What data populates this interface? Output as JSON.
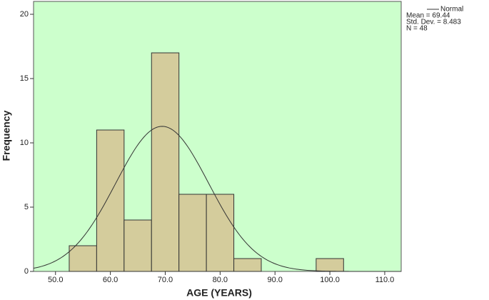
{
  "chart_data": {
    "type": "histogram",
    "xlabel": "AGE (YEARS)",
    "ylabel": "Frequency",
    "bins": [
      52.5,
      57.5,
      62.5,
      67.5,
      72.5,
      77.5,
      82.5,
      87.5,
      92.5,
      97.5,
      102.5
    ],
    "values": [
      2,
      11,
      4,
      17,
      6,
      6,
      1,
      0,
      0,
      1
    ],
    "color": "#d4cc9c",
    "background": "#ccffcc",
    "xlim": [
      46,
      113
    ],
    "ylim": [
      0,
      21
    ],
    "xticks": [
      {
        "value": 50,
        "label": "50.0"
      },
      {
        "value": 60,
        "label": "60.0"
      },
      {
        "value": 70,
        "label": "70.0"
      },
      {
        "value": 80,
        "label": "80.0"
      },
      {
        "value": 90,
        "label": "90.0"
      },
      {
        "value": 100,
        "label": "100.0"
      },
      {
        "value": 110,
        "label": "110.0"
      }
    ],
    "yticks": [
      0,
      5,
      10,
      15,
      20
    ],
    "curve": {
      "name": "Normal",
      "color": "#333333"
    },
    "stats": [
      {
        "value": 69.44,
        "label": "Mean = 69.44"
      },
      {
        "value": 8.483,
        "label": "Std. Dev. = 8.483"
      },
      {
        "value": 48,
        "label": "N = 48"
      }
    ]
  }
}
